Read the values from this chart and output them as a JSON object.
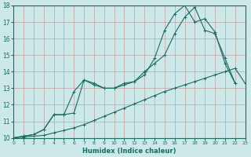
{
  "xlabel": "Humidex (Indice chaleur)",
  "xlim": [
    0,
    23
  ],
  "ylim": [
    10,
    18
  ],
  "xticks": [
    0,
    1,
    2,
    3,
    4,
    5,
    6,
    7,
    8,
    9,
    10,
    11,
    12,
    13,
    14,
    15,
    16,
    17,
    18,
    19,
    20,
    21,
    22,
    23
  ],
  "yticks": [
    10,
    11,
    12,
    13,
    14,
    15,
    16,
    17,
    18
  ],
  "bg_color": "#cde8e8",
  "line_color": "#1a6b60",
  "grid_color": "#c4a0a0",
  "series1_x": [
    0,
    1,
    2,
    3,
    4,
    5,
    6,
    7,
    8,
    9,
    10,
    11,
    12,
    13,
    14,
    15,
    16,
    17,
    18,
    19,
    20,
    21,
    22,
    23
  ],
  "series1_y": [
    10.0,
    10.05,
    10.1,
    10.15,
    10.3,
    10.45,
    10.6,
    10.8,
    11.05,
    11.3,
    11.55,
    11.8,
    12.05,
    12.3,
    12.55,
    12.8,
    13.0,
    13.2,
    13.4,
    13.6,
    13.8,
    14.0,
    14.2,
    13.3
  ],
  "series2_x": [
    0,
    1,
    2,
    3,
    4,
    5,
    6,
    7,
    8,
    9,
    10,
    11,
    12,
    13,
    14,
    15,
    16,
    17,
    18,
    19,
    20,
    21,
    22
  ],
  "series2_y": [
    10.0,
    10.1,
    10.2,
    10.5,
    11.4,
    11.4,
    12.8,
    13.5,
    13.3,
    13.0,
    13.0,
    13.3,
    13.4,
    13.8,
    14.8,
    16.5,
    17.5,
    18.0,
    17.0,
    17.2,
    16.4,
    14.5,
    13.3
  ],
  "series3_x": [
    0,
    1,
    2,
    3,
    4,
    5,
    6,
    7,
    8,
    9,
    10,
    11,
    12,
    13,
    14,
    15,
    16,
    17,
    18,
    19,
    20,
    21,
    22
  ],
  "series3_y": [
    10.0,
    10.1,
    10.2,
    10.5,
    11.4,
    11.4,
    11.5,
    13.5,
    13.2,
    13.0,
    13.0,
    13.2,
    13.4,
    14.0,
    14.5,
    15.0,
    16.3,
    17.3,
    17.9,
    16.5,
    16.3,
    14.8,
    13.3
  ]
}
